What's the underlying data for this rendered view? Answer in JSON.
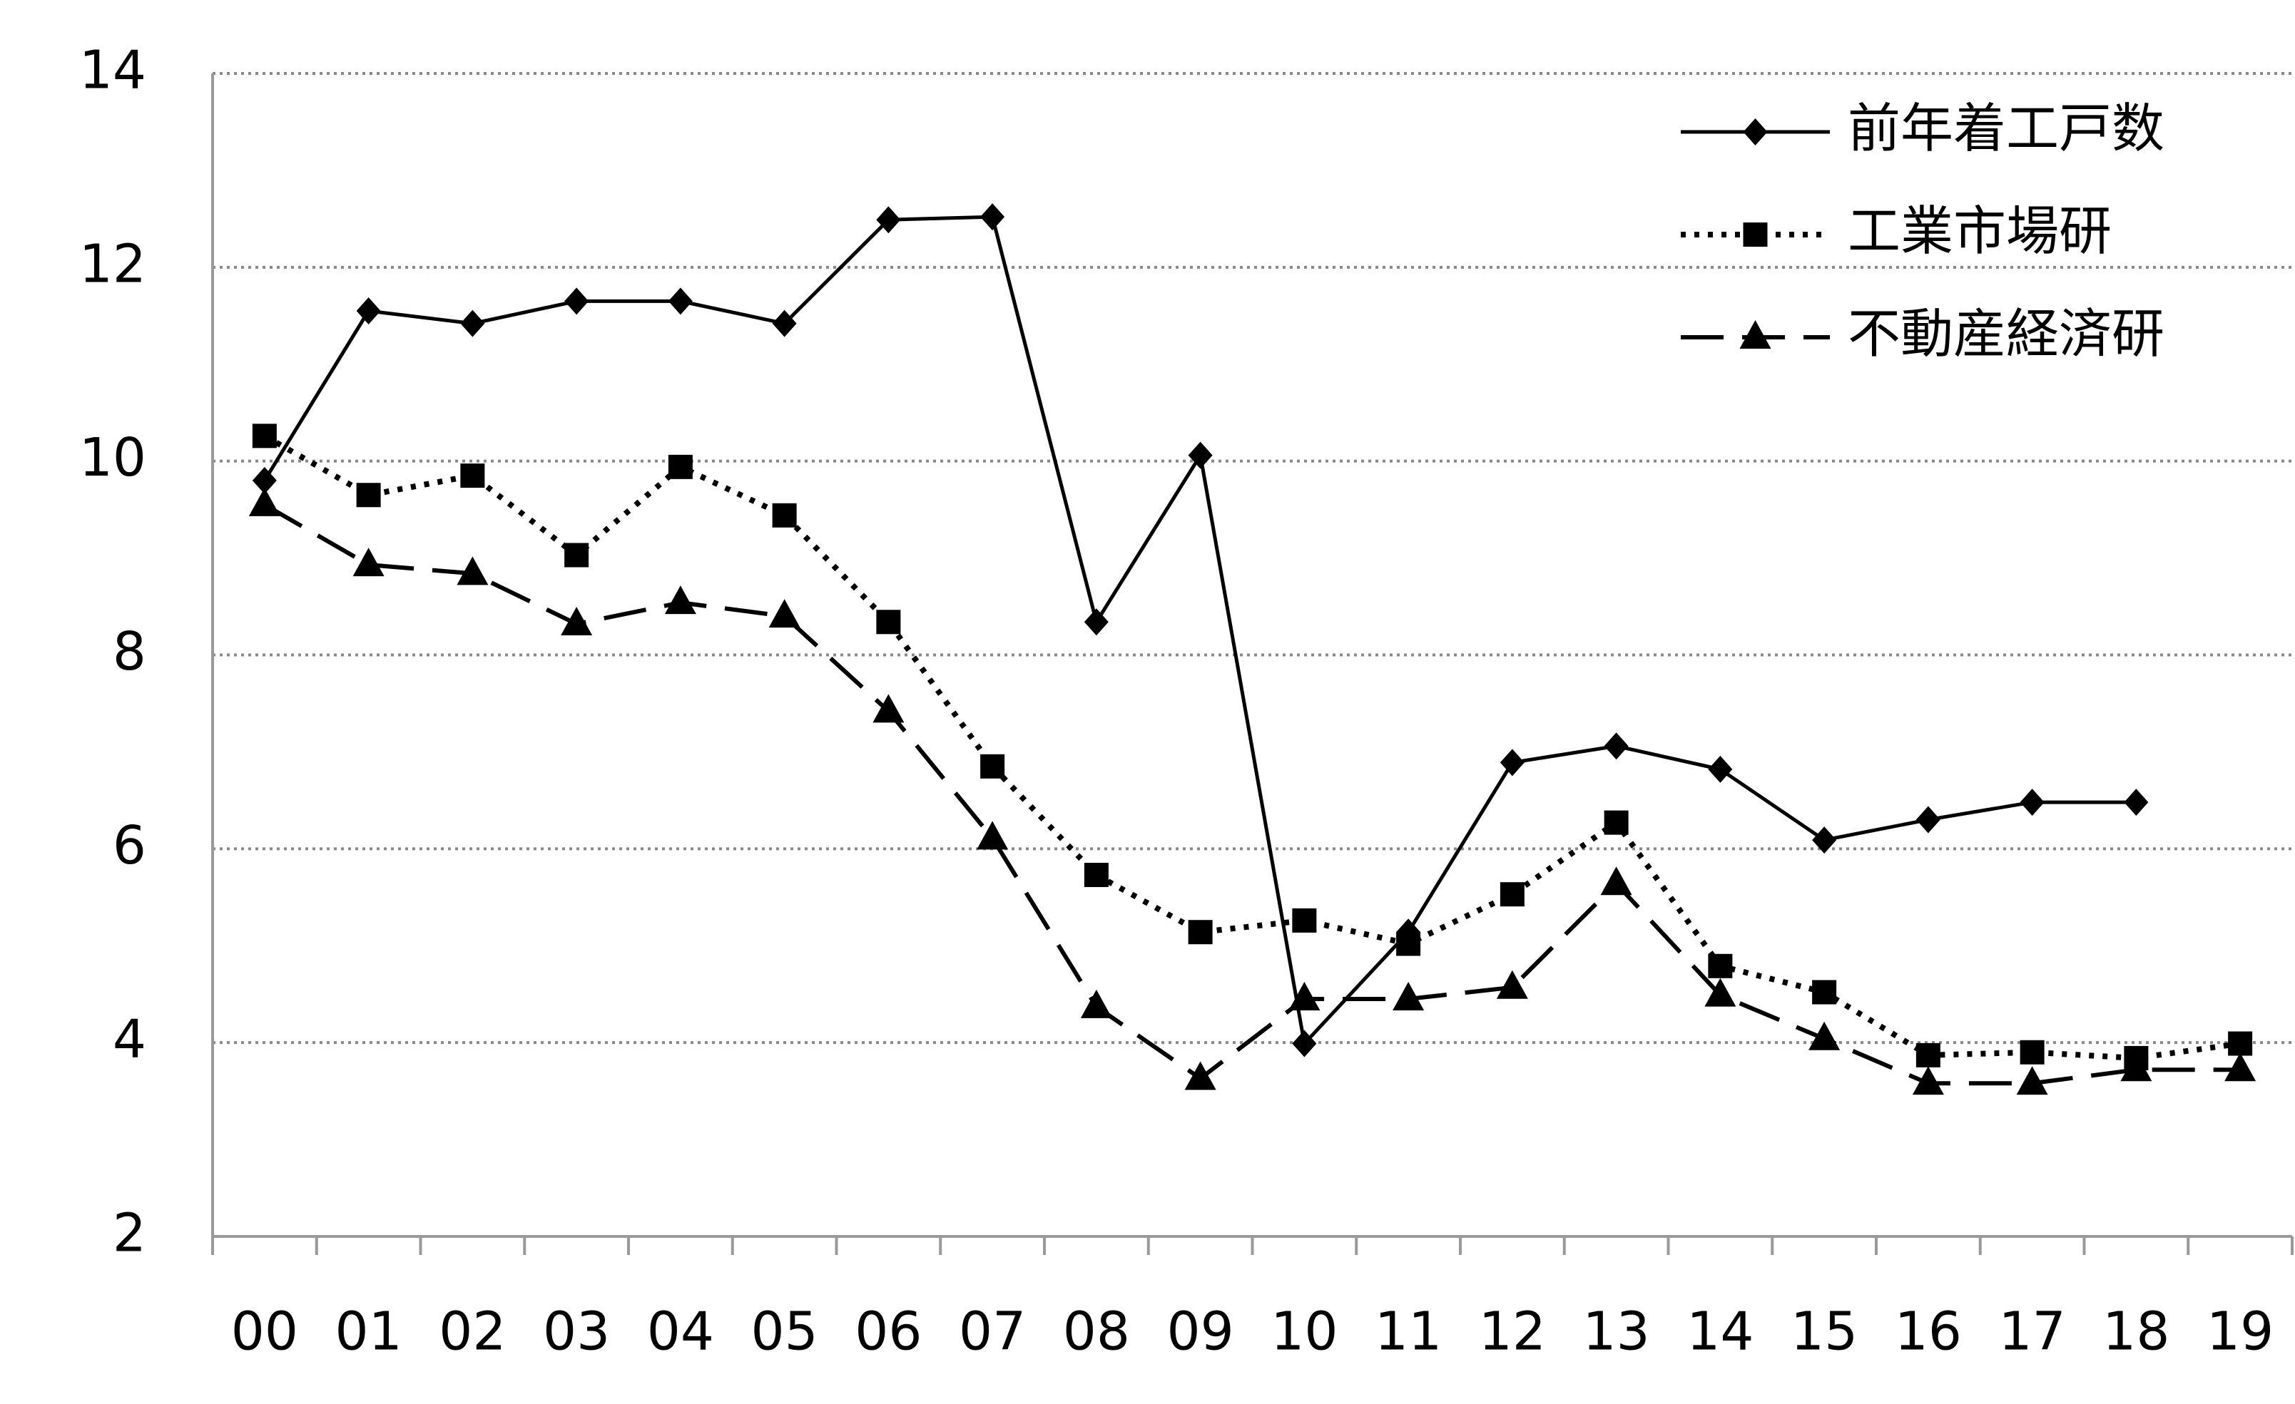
{
  "chart_data": {
    "type": "line",
    "categories": [
      "00",
      "01",
      "02",
      "03",
      "04",
      "05",
      "06",
      "07",
      "08",
      "09",
      "10",
      "11",
      "12",
      "13",
      "14",
      "15",
      "16",
      "17",
      "18",
      "19"
    ],
    "series": [
      {
        "name": "前年着工戸数",
        "color": "#000000",
        "dash": "solid",
        "marker": "diamond",
        "values": [
          9.8,
          11.55,
          11.42,
          11.65,
          11.65,
          11.42,
          12.49,
          12.52,
          8.34,
          10.06,
          3.99,
          5.14,
          6.89,
          7.06,
          6.82,
          6.09,
          6.3,
          6.48,
          6.48,
          null
        ]
      },
      {
        "name": "工業市場研",
        "color": "#000000",
        "dash": "dotted",
        "marker": "square",
        "values": [
          10.26,
          9.65,
          9.85,
          9.03,
          9.94,
          9.44,
          8.34,
          6.85,
          5.73,
          5.14,
          5.26,
          5.02,
          5.53,
          6.27,
          4.79,
          4.52,
          3.87,
          3.9,
          3.84,
          3.99
        ]
      },
      {
        "name": "不動産経済研",
        "color": "#000000",
        "dash": "dashed",
        "marker": "triangle",
        "values": [
          9.55,
          8.93,
          8.84,
          8.32,
          8.54,
          8.4,
          7.42,
          6.11,
          4.37,
          3.63,
          4.45,
          4.45,
          4.57,
          5.64,
          4.49,
          4.04,
          3.58,
          3.58,
          3.72,
          3.72
        ]
      }
    ],
    "ylim": [
      2,
      14
    ],
    "yticks": [
      2,
      4,
      6,
      8,
      10,
      12,
      14
    ],
    "grid": true,
    "legend": "upper right"
  }
}
